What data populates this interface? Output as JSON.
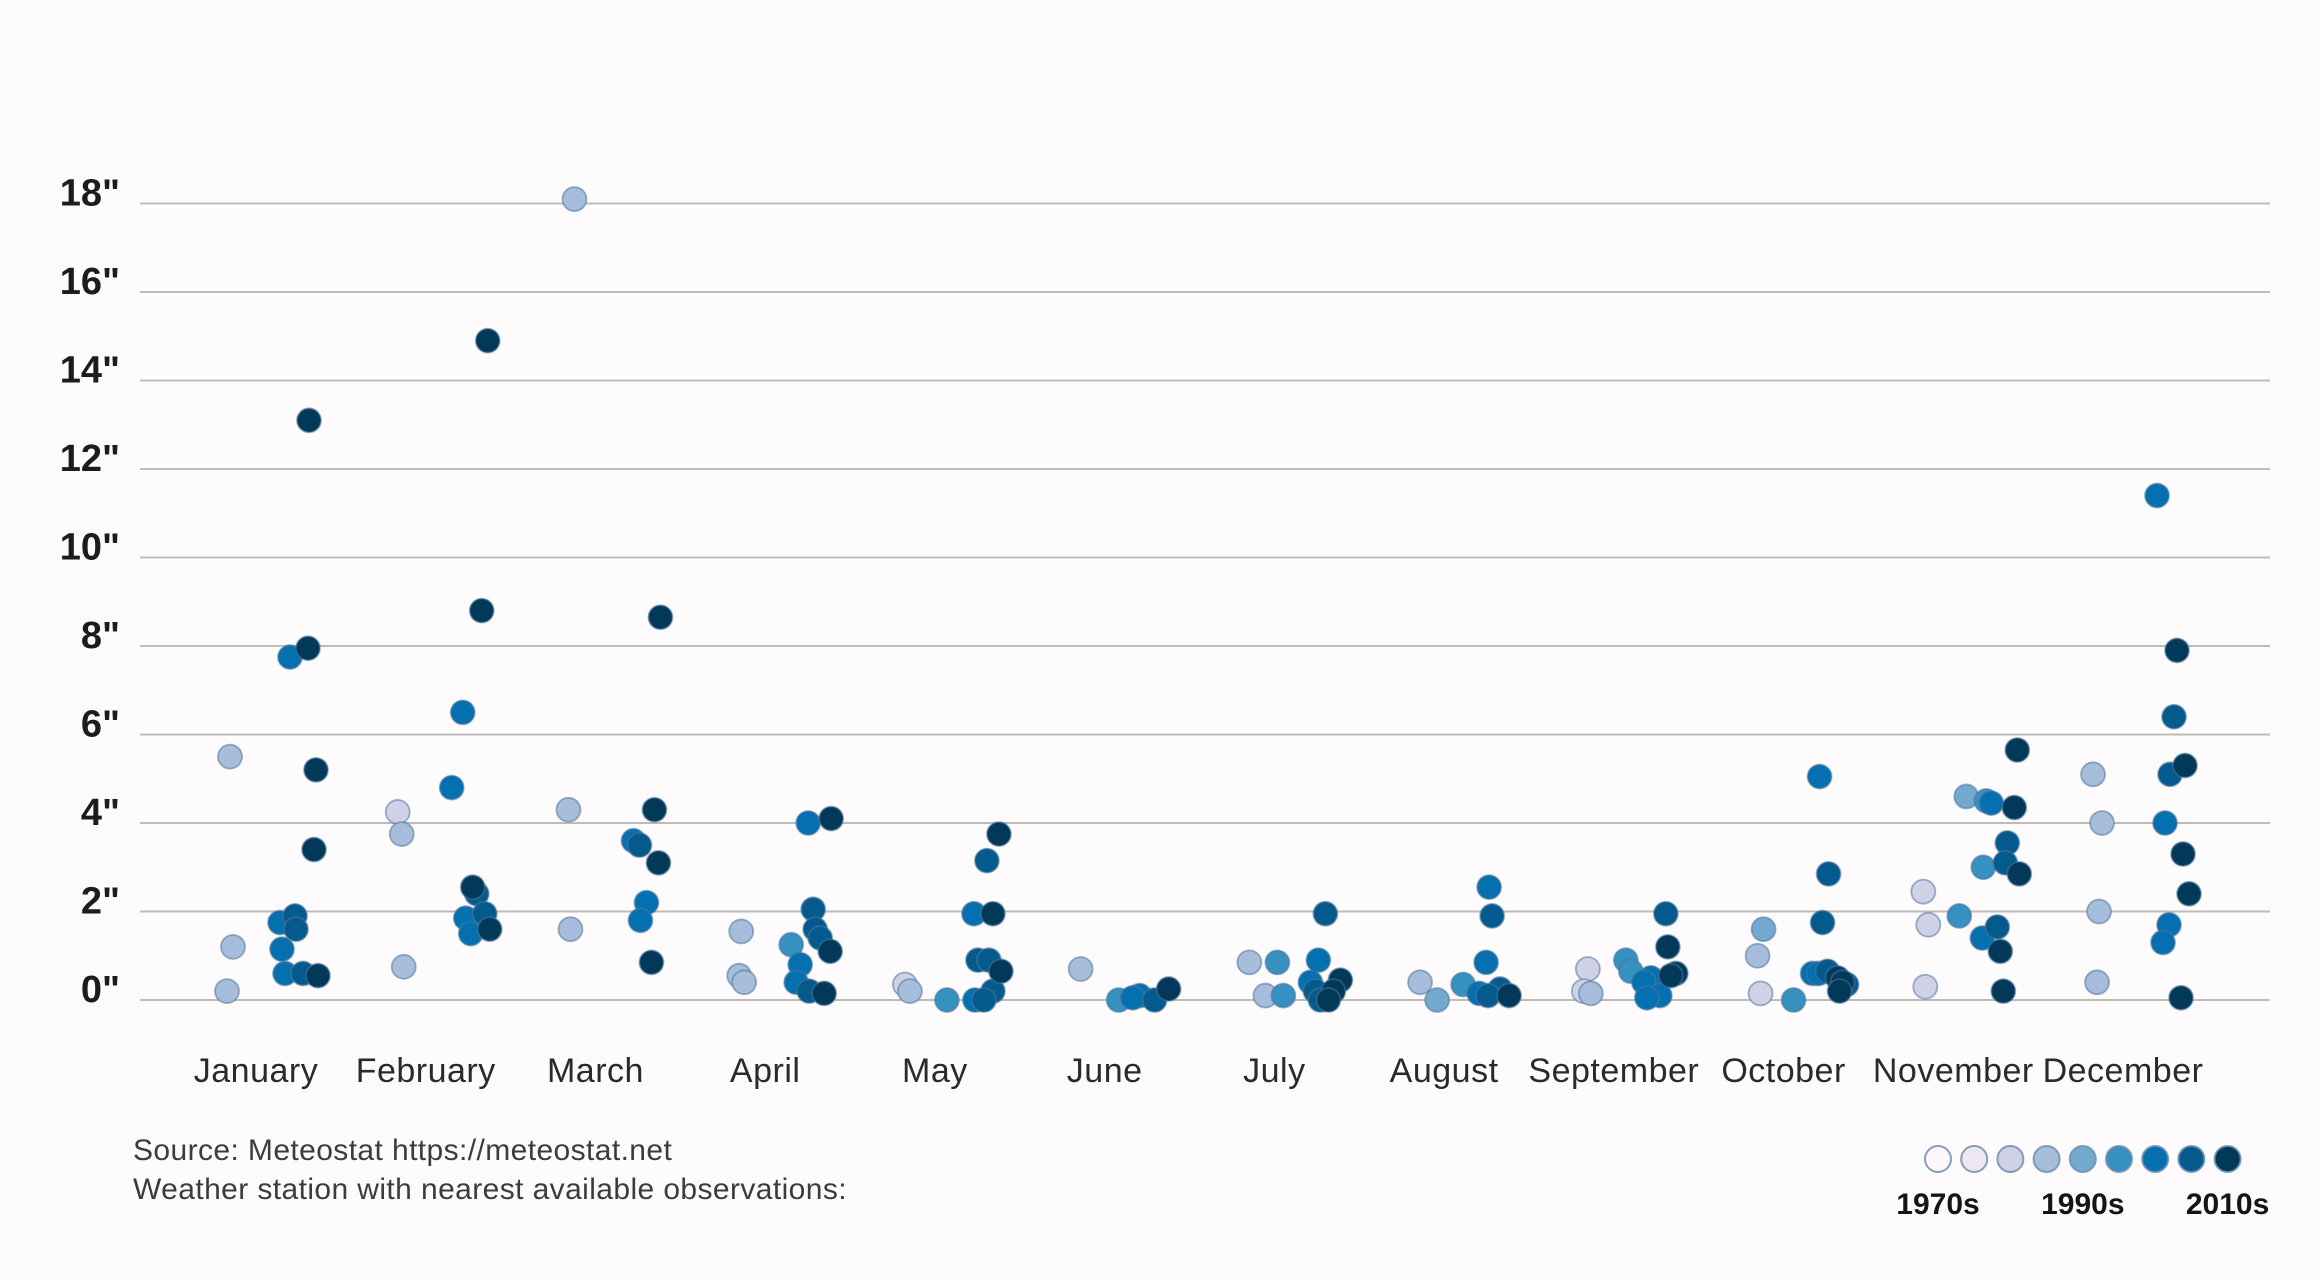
{
  "source": {
    "line1": "Source: Meteostat https://meteostat.net",
    "line2": "Weather station with nearest available observations:"
  },
  "legend": {
    "labels": [
      "1970s",
      "1990s",
      "2010s"
    ],
    "swatches": [
      "#fff7fb",
      "#ece7f2",
      "#d0d1e6",
      "#a6bddb",
      "#74a9cf",
      "#3690c0",
      "#0570b0",
      "#045a8d",
      "#023858"
    ]
  },
  "chart_data": {
    "type": "scatter",
    "title": "",
    "xlabel": "",
    "ylabel": "inches",
    "ylim": [
      0,
      18
    ],
    "ytick_step": 2,
    "grid": true,
    "legend_position": "bottom-right",
    "ytick_labels": [
      "0\"",
      "2\"",
      "4\"",
      "6\"",
      "8\"",
      "10\"",
      "12\"",
      "14\"",
      "16\"",
      "18\""
    ],
    "months": [
      "January",
      "February",
      "March",
      "April",
      "May",
      "June",
      "July",
      "August",
      "September",
      "October",
      "November",
      "December"
    ],
    "decade_palette": [
      "#fff7fb",
      "#ece7f2",
      "#d0d1e6",
      "#a6bddb",
      "#74a9cf",
      "#3690c0",
      "#0570b0",
      "#045a8d",
      "#023858"
    ],
    "point_format": [
      "month_index",
      "value_inches",
      "decade_shade_0to8",
      "x_jitter_px"
    ],
    "points": [
      [
        0,
        13.1,
        8,
        53
      ],
      [
        0,
        7.95,
        8,
        52
      ],
      [
        0,
        7.75,
        6,
        34
      ],
      [
        0,
        5.5,
        3,
        -26
      ],
      [
        0,
        5.2,
        8,
        60
      ],
      [
        0,
        3.4,
        8,
        58
      ],
      [
        0,
        1.9,
        7,
        39
      ],
      [
        0,
        1.75,
        6,
        24
      ],
      [
        0,
        1.6,
        7,
        40
      ],
      [
        0,
        1.2,
        3,
        -23
      ],
      [
        0,
        1.15,
        6,
        26
      ],
      [
        0,
        0.6,
        6,
        29
      ],
      [
        0,
        0.6,
        7,
        47
      ],
      [
        0,
        0.55,
        8,
        62
      ],
      [
        0,
        0.2,
        3,
        -29
      ],
      [
        1,
        14.9,
        8,
        62
      ],
      [
        1,
        8.8,
        8,
        56
      ],
      [
        1,
        6.5,
        6,
        37
      ],
      [
        1,
        4.8,
        6,
        26
      ],
      [
        1,
        4.25,
        2,
        -28
      ],
      [
        1,
        3.75,
        3,
        -24
      ],
      [
        1,
        2.55,
        8,
        47
      ],
      [
        1,
        2.4,
        7,
        51
      ],
      [
        1,
        1.95,
        7,
        59
      ],
      [
        1,
        1.85,
        6,
        40
      ],
      [
        1,
        1.6,
        8,
        64
      ],
      [
        1,
        1.5,
        6,
        45
      ],
      [
        1,
        0.75,
        3,
        -22
      ],
      [
        2,
        18.1,
        3,
        -21
      ],
      [
        2,
        8.65,
        8,
        65
      ],
      [
        2,
        4.3,
        3,
        -27
      ],
      [
        2,
        4.3,
        8,
        59
      ],
      [
        2,
        3.6,
        6,
        38
      ],
      [
        2,
        3.5,
        7,
        44
      ],
      [
        2,
        3.1,
        8,
        63
      ],
      [
        2,
        2.2,
        6,
        51
      ],
      [
        2,
        1.8,
        6,
        45
      ],
      [
        2,
        1.6,
        3,
        -25
      ],
      [
        2,
        0.85,
        8,
        56
      ],
      [
        3,
        4.1,
        8,
        66
      ],
      [
        3,
        4.0,
        6,
        43
      ],
      [
        3,
        2.05,
        7,
        48
      ],
      [
        3,
        1.6,
        7,
        50
      ],
      [
        3,
        1.55,
        3,
        -24
      ],
      [
        3,
        1.4,
        7,
        55
      ],
      [
        3,
        1.25,
        5,
        26
      ],
      [
        3,
        1.1,
        8,
        65
      ],
      [
        3,
        0.8,
        6,
        35
      ],
      [
        3,
        0.55,
        3,
        -26
      ],
      [
        3,
        0.4,
        3,
        -21
      ],
      [
        3,
        0.4,
        6,
        31
      ],
      [
        3,
        0.2,
        7,
        44
      ],
      [
        3,
        0.15,
        8,
        59
      ],
      [
        4,
        3.75,
        8,
        64
      ],
      [
        4,
        3.15,
        7,
        52
      ],
      [
        4,
        1.95,
        6,
        39
      ],
      [
        4,
        1.95,
        8,
        58
      ],
      [
        4,
        0.9,
        7,
        43
      ],
      [
        4,
        0.9,
        7,
        54
      ],
      [
        4,
        0.65,
        8,
        66
      ],
      [
        4,
        0.35,
        2,
        -30
      ],
      [
        4,
        0.2,
        3,
        -25
      ],
      [
        4,
        0.2,
        7,
        58
      ],
      [
        4,
        0.0,
        6,
        40
      ],
      [
        4,
        0.0,
        7,
        49
      ],
      [
        4,
        0.0,
        5,
        12
      ],
      [
        5,
        0.7,
        3,
        -24
      ],
      [
        5,
        0.1,
        6,
        35
      ],
      [
        5,
        0.05,
        6,
        28
      ],
      [
        5,
        0.0,
        5,
        14
      ],
      [
        5,
        0.0,
        7,
        50
      ],
      [
        5,
        0.25,
        8,
        64
      ],
      [
        6,
        1.95,
        7,
        51
      ],
      [
        6,
        0.9,
        6,
        44
      ],
      [
        6,
        0.85,
        5,
        3
      ],
      [
        6,
        0.85,
        3,
        -25
      ],
      [
        6,
        0.45,
        8,
        66
      ],
      [
        6,
        0.4,
        6,
        36
      ],
      [
        6,
        0.2,
        7,
        41
      ],
      [
        6,
        0.2,
        8,
        59
      ],
      [
        6,
        0.1,
        3,
        -9
      ],
      [
        6,
        0.1,
        5,
        9
      ],
      [
        6,
        0.0,
        7,
        46
      ],
      [
        6,
        0.0,
        8,
        54
      ],
      [
        7,
        2.55,
        6,
        45
      ],
      [
        7,
        1.9,
        7,
        48
      ],
      [
        7,
        0.85,
        6,
        42
      ],
      [
        7,
        0.4,
        3,
        -24
      ],
      [
        7,
        0.35,
        5,
        19
      ],
      [
        7,
        0.25,
        7,
        56
      ],
      [
        7,
        0.15,
        6,
        35
      ],
      [
        7,
        0.1,
        7,
        44
      ],
      [
        7,
        0.1,
        8,
        65
      ],
      [
        7,
        0.0,
        4,
        -7
      ],
      [
        8,
        1.95,
        7,
        52
      ],
      [
        8,
        1.2,
        8,
        54
      ],
      [
        8,
        0.9,
        5,
        12
      ],
      [
        8,
        0.7,
        2,
        -26
      ],
      [
        8,
        0.65,
        5,
        17
      ],
      [
        8,
        0.6,
        8,
        62
      ],
      [
        8,
        0.55,
        8,
        57
      ],
      [
        8,
        0.5,
        6,
        37
      ],
      [
        8,
        0.4,
        6,
        30
      ],
      [
        8,
        0.2,
        2,
        -30
      ],
      [
        8,
        0.15,
        3,
        -23
      ],
      [
        8,
        0.1,
        6,
        46
      ],
      [
        8,
        0.05,
        6,
        33
      ],
      [
        9,
        5.05,
        6,
        36
      ],
      [
        9,
        2.85,
        7,
        45
      ],
      [
        9,
        1.75,
        7,
        39
      ],
      [
        9,
        1.6,
        4,
        -20
      ],
      [
        9,
        1.0,
        3,
        -26
      ],
      [
        9,
        0.65,
        7,
        44
      ],
      [
        9,
        0.6,
        6,
        29
      ],
      [
        9,
        0.6,
        6,
        35
      ],
      [
        9,
        0.5,
        8,
        54
      ],
      [
        9,
        0.4,
        8,
        59
      ],
      [
        9,
        0.35,
        7,
        63
      ],
      [
        9,
        0.2,
        8,
        56
      ],
      [
        9,
        0.15,
        2,
        -23
      ],
      [
        9,
        0.0,
        5,
        10
      ],
      [
        10,
        5.65,
        8,
        64
      ],
      [
        10,
        4.6,
        4,
        13
      ],
      [
        10,
        4.5,
        5,
        33
      ],
      [
        10,
        4.45,
        6,
        38
      ],
      [
        10,
        4.35,
        8,
        61
      ],
      [
        10,
        3.55,
        7,
        54
      ],
      [
        10,
        3.1,
        7,
        52
      ],
      [
        10,
        3.0,
        5,
        30
      ],
      [
        10,
        2.85,
        8,
        66
      ],
      [
        10,
        2.45,
        2,
        -30
      ],
      [
        10,
        1.9,
        5,
        6
      ],
      [
        10,
        1.7,
        2,
        -25
      ],
      [
        10,
        1.65,
        7,
        44
      ],
      [
        10,
        1.4,
        6,
        29
      ],
      [
        10,
        1.1,
        8,
        47
      ],
      [
        10,
        0.3,
        2,
        -28
      ],
      [
        10,
        0.2,
        8,
        50
      ],
      [
        11,
        11.4,
        6,
        34
      ],
      [
        11,
        7.9,
        8,
        54
      ],
      [
        11,
        6.4,
        7,
        51
      ],
      [
        11,
        5.3,
        8,
        62
      ],
      [
        11,
        5.1,
        7,
        47
      ],
      [
        11,
        5.1,
        3,
        -30
      ],
      [
        11,
        4.0,
        3,
        -21
      ],
      [
        11,
        4.0,
        6,
        42
      ],
      [
        11,
        3.3,
        8,
        60
      ],
      [
        11,
        2.4,
        8,
        66
      ],
      [
        11,
        2.0,
        3,
        -24
      ],
      [
        11,
        1.7,
        6,
        46
      ],
      [
        11,
        1.3,
        6,
        40
      ],
      [
        11,
        0.4,
        3,
        -26
      ],
      [
        11,
        0.05,
        8,
        58
      ]
    ]
  }
}
